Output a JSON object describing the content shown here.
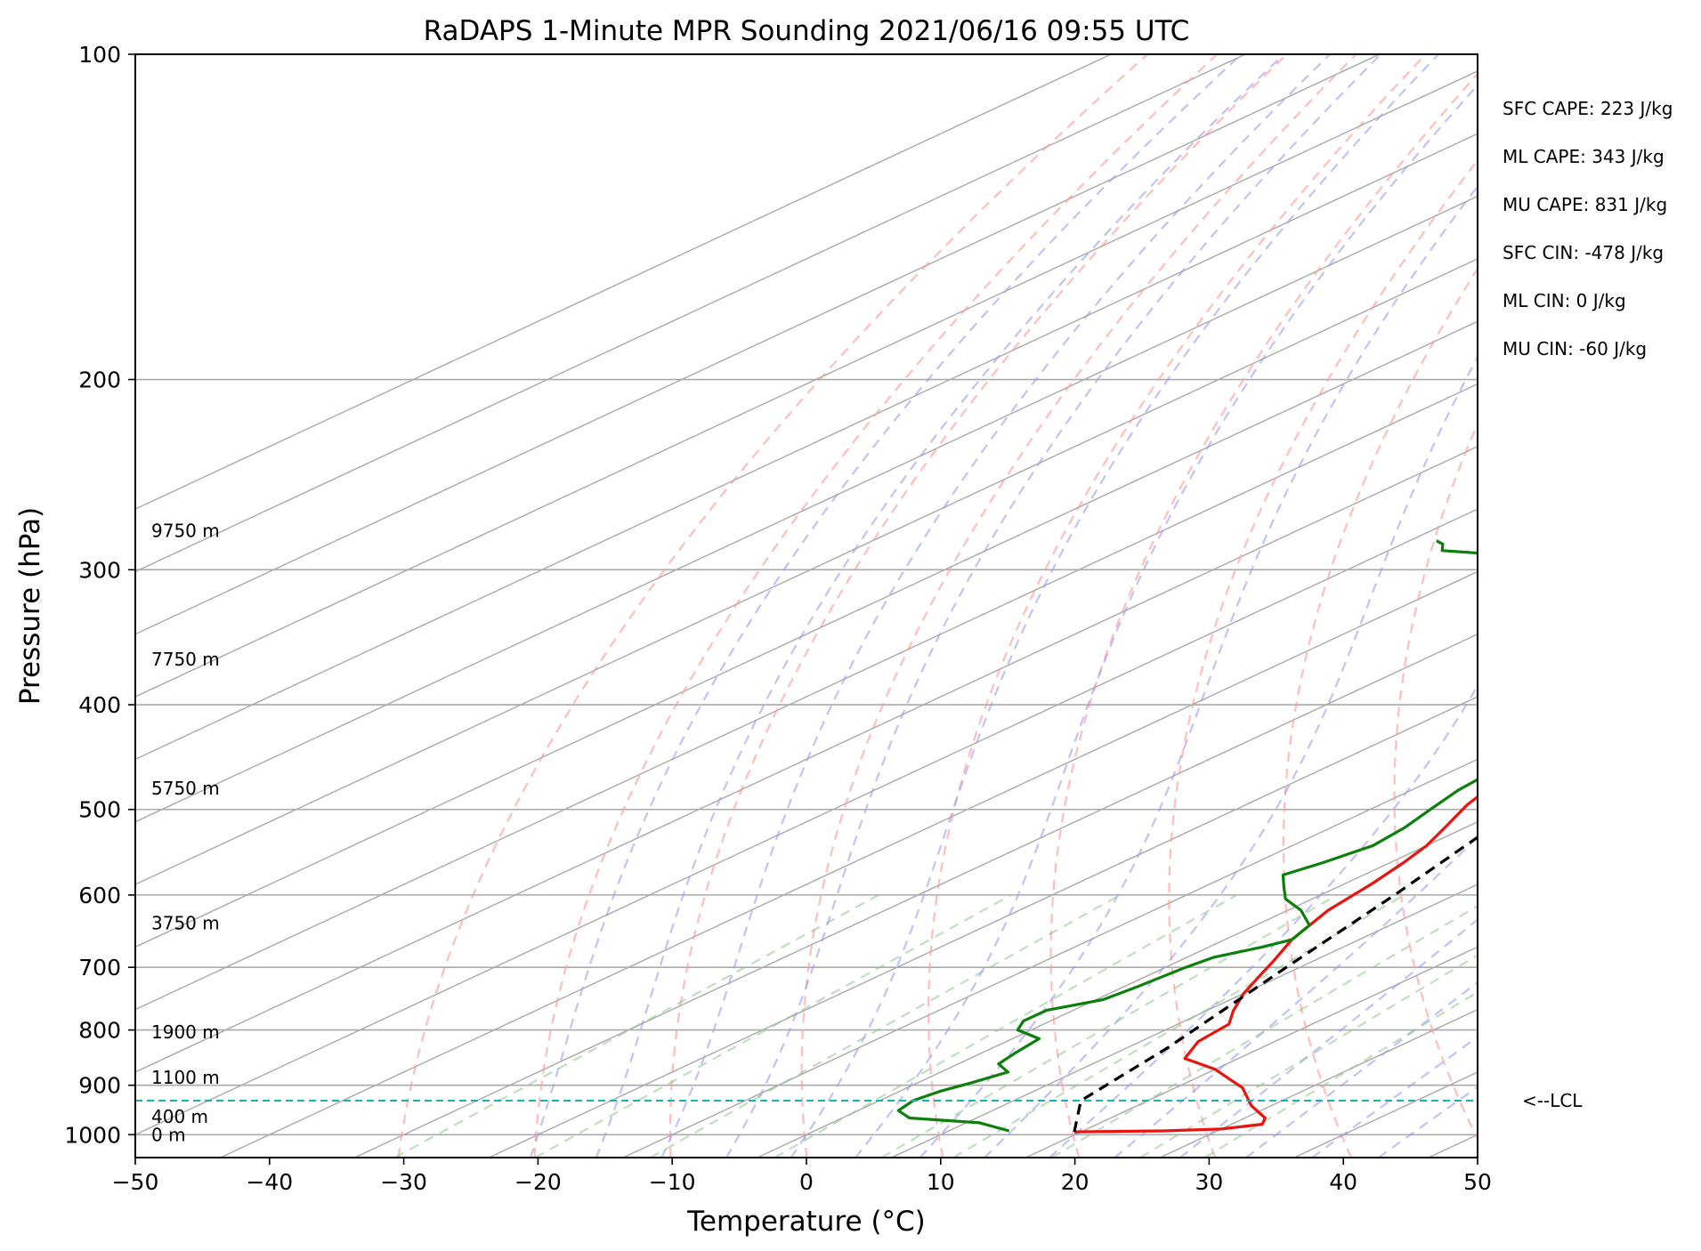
{
  "chart_data": {
    "type": "line",
    "chart_kind": "skew-T log-P",
    "title": "RaDAPS 1-Minute MPR Sounding 2021/06/16 09:55 UTC",
    "xlabel": "Temperature (°C)",
    "ylabel": "Pressure (hPa)",
    "xlim": [
      -50,
      50
    ],
    "ylim": [
      1050,
      100
    ],
    "y_scale": "log",
    "grid": true,
    "x_ticks": [
      -50,
      -40,
      -30,
      -20,
      -10,
      0,
      10,
      20,
      30,
      40,
      50
    ],
    "x_tick_labels": [
      "−50",
      "−40",
      "−30",
      "−20",
      "−10",
      "0",
      "10",
      "20",
      "30",
      "40",
      "50"
    ],
    "y_ticks": [
      100,
      200,
      300,
      400,
      500,
      600,
      700,
      800,
      900,
      1000
    ],
    "y_tick_labels": [
      "100",
      "200",
      "300",
      "400",
      "500",
      "600",
      "700",
      "800",
      "900",
      "1000"
    ],
    "height_labels": [
      {
        "text": "9750 m",
        "p": 276
      },
      {
        "text": "7750 m",
        "p": 363
      },
      {
        "text": "5750 m",
        "p": 478
      },
      {
        "text": "3750 m",
        "p": 637
      },
      {
        "text": "1900 m",
        "p": 804
      },
      {
        "text": "1100 m",
        "p": 885
      },
      {
        "text": "400 m",
        "p": 962
      },
      {
        "text": "0 m",
        "p": 1000
      }
    ],
    "indices": [
      "SFC CAPE: 223 J/kg",
      "ML CAPE: 343 J/kg",
      "MU CAPE: 831 J/kg",
      "SFC CIN: -478 J/kg",
      "ML CIN: 0 J/kg",
      "MU CIN: -60 J/kg"
    ],
    "lcl": {
      "label": "<--LCL",
      "p": 930
    },
    "series": [
      {
        "role": "temperature",
        "color": "#e8140f",
        "points": [
          [
            994,
            19.5
          ],
          [
            992,
            26
          ],
          [
            988,
            30
          ],
          [
            978,
            32.3
          ],
          [
            965,
            31.5
          ],
          [
            940,
            28.5
          ],
          [
            905,
            25
          ],
          [
            870,
            20
          ],
          [
            850,
            16
          ],
          [
            820,
            14.3
          ],
          [
            790,
            13.8
          ],
          [
            768,
            12
          ],
          [
            740,
            10
          ],
          [
            715,
            8.5
          ],
          [
            690,
            7
          ],
          [
            660,
            5
          ],
          [
            620,
            3
          ],
          [
            585,
            2
          ],
          [
            560,
            1
          ],
          [
            540,
            0
          ],
          [
            520,
            -1.5
          ],
          [
            495,
            -3.5
          ],
          [
            470,
            -5
          ],
          [
            450,
            -6.5
          ],
          [
            430,
            -8
          ],
          [
            410,
            -9.5
          ],
          [
            390,
            -11
          ],
          [
            370,
            -13
          ],
          [
            350,
            -15
          ],
          [
            337,
            -16
          ],
          [
            320,
            -17.5
          ],
          [
            302,
            -19
          ],
          [
            285,
            -20.5
          ],
          [
            276,
            -21.5
          ],
          [
            266,
            -22.5
          ]
        ]
      },
      {
        "role": "dewpoint",
        "color": "#0c7f0c",
        "points": [
          [
            992,
            14.5
          ],
          [
            975,
            11
          ],
          [
            965,
            5
          ],
          [
            950,
            3
          ],
          [
            930,
            2.5
          ],
          [
            912,
            3
          ],
          [
            895,
            4
          ],
          [
            875,
            5
          ],
          [
            860,
            3
          ],
          [
            840,
            2.5
          ],
          [
            815,
            2
          ],
          [
            800,
            -1
          ],
          [
            785,
            -2
          ],
          [
            767,
            -2
          ],
          [
            750,
            0.5
          ],
          [
            730,
            1
          ],
          [
            700,
            1.5
          ],
          [
            685,
            2
          ],
          [
            670,
            4
          ],
          [
            660,
            5
          ],
          [
            640,
            4
          ],
          [
            620,
            1
          ],
          [
            605,
            -2
          ],
          [
            590,
            -4
          ],
          [
            575,
            -6
          ],
          [
            560,
            -5
          ],
          [
            540,
            -4
          ],
          [
            520,
            -4.5
          ],
          [
            500,
            -5.5
          ],
          [
            480,
            -6.5
          ],
          [
            460,
            -7
          ],
          [
            440,
            -8
          ],
          [
            425,
            -9.5
          ],
          [
            410,
            -11
          ],
          [
            395,
            -12.5
          ],
          [
            378,
            -14
          ],
          [
            358,
            -15
          ],
          [
            345,
            -16.5
          ],
          [
            330,
            -18
          ],
          [
            318,
            -19.5
          ],
          [
            302,
            -19.5
          ],
          [
            296,
            -30
          ],
          [
            288,
            -46
          ],
          [
            284,
            -47
          ],
          [
            282,
            -48
          ]
        ]
      },
      {
        "role": "parcel",
        "color": "#000000",
        "dashed": true,
        "points": [
          [
            994,
            19.5
          ],
          [
            930,
            15
          ],
          [
            830,
            13
          ],
          [
            700,
            9
          ],
          [
            600,
            5.5
          ],
          [
            500,
            1
          ],
          [
            400,
            -5
          ],
          [
            330,
            -11.5
          ],
          [
            270,
            -17
          ]
        ]
      }
    ]
  }
}
